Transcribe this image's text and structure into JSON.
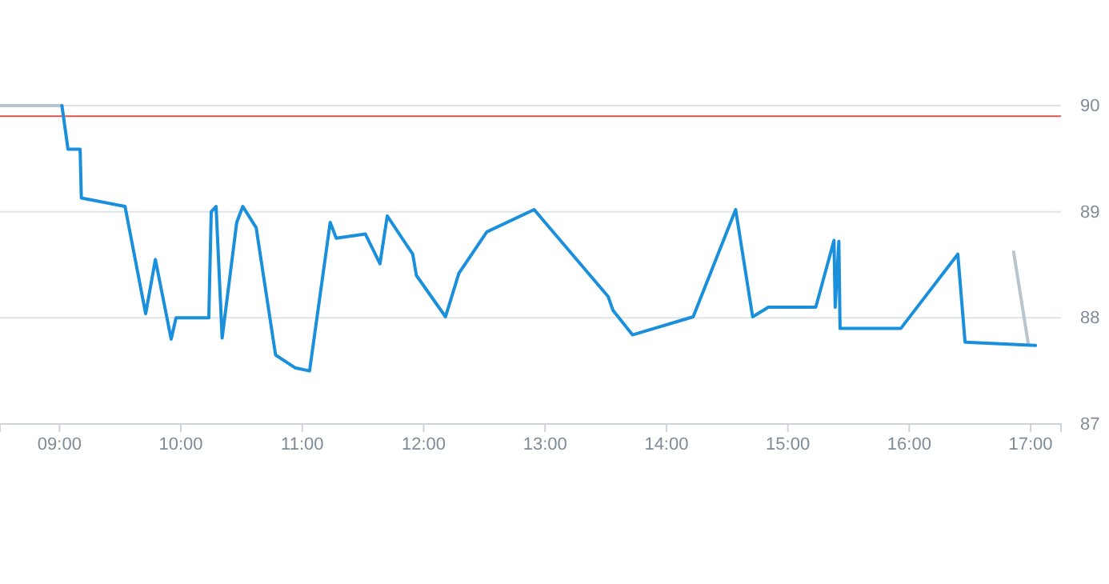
{
  "chart_data": {
    "type": "line",
    "xlim": [
      8.51,
      17.25
    ],
    "ylim": [
      87,
      90
    ],
    "xticks": [
      {
        "value": 9,
        "label": "09:00"
      },
      {
        "value": 10,
        "label": "10:00"
      },
      {
        "value": 11,
        "label": "11:00"
      },
      {
        "value": 12,
        "label": "12:00"
      },
      {
        "value": 13,
        "label": "13:00"
      },
      {
        "value": 14,
        "label": "14:00"
      },
      {
        "value": 15,
        "label": "15:00"
      },
      {
        "value": 16,
        "label": "16:00"
      },
      {
        "value": 17,
        "label": "17:00"
      }
    ],
    "yticks": [
      87,
      88,
      89,
      90
    ],
    "grid": "y",
    "marker": "none",
    "line_style": "solid",
    "ref_lines": [
      {
        "axis": "y",
        "value": 89.9,
        "label": null,
        "color": "#d9534f"
      }
    ],
    "series": [
      {
        "color": "#b8c4ce",
        "x": [
          8.51,
          9.02
        ],
        "values": [
          90,
          90
        ]
      },
      {
        "color": "#b8c4ce",
        "x": [
          16.86,
          16.98
        ],
        "values": [
          88.62,
          87.76
        ]
      },
      {
        "color": "#1a8fdc",
        "x": [
          9.02,
          9.07,
          9.17,
          9.18,
          9.54,
          9.71,
          9.79,
          9.92,
          9.96,
          10.23,
          10.25,
          10.29,
          10.34,
          10.46,
          10.51,
          10.62,
          10.78,
          10.94,
          11.06,
          11.23,
          11.28,
          11.52,
          11.64,
          11.7,
          11.91,
          11.94,
          12.18,
          12.29,
          12.52,
          12.91,
          13.52,
          13.56,
          13.72,
          14.22,
          14.57,
          14.71,
          14.84,
          15.23,
          15.38,
          15.39,
          15.42,
          15.43,
          15.93,
          16.4,
          16.46,
          17.04
        ],
        "values": [
          90,
          89.59,
          89.59,
          89.13,
          89.05,
          88.04,
          88.55,
          87.8,
          88,
          88,
          89,
          89.05,
          87.81,
          88.9,
          89.05,
          88.85,
          87.65,
          87.53,
          87.5,
          88.9,
          88.75,
          88.79,
          88.51,
          88.96,
          88.6,
          88.4,
          88.01,
          88.42,
          88.81,
          89.02,
          88.2,
          88.07,
          87.84,
          88.01,
          89.02,
          88.01,
          88.1,
          88.1,
          88.73,
          88.1,
          88.72,
          87.9,
          87.9,
          88.6,
          87.77,
          87.74
        ]
      }
    ]
  }
}
